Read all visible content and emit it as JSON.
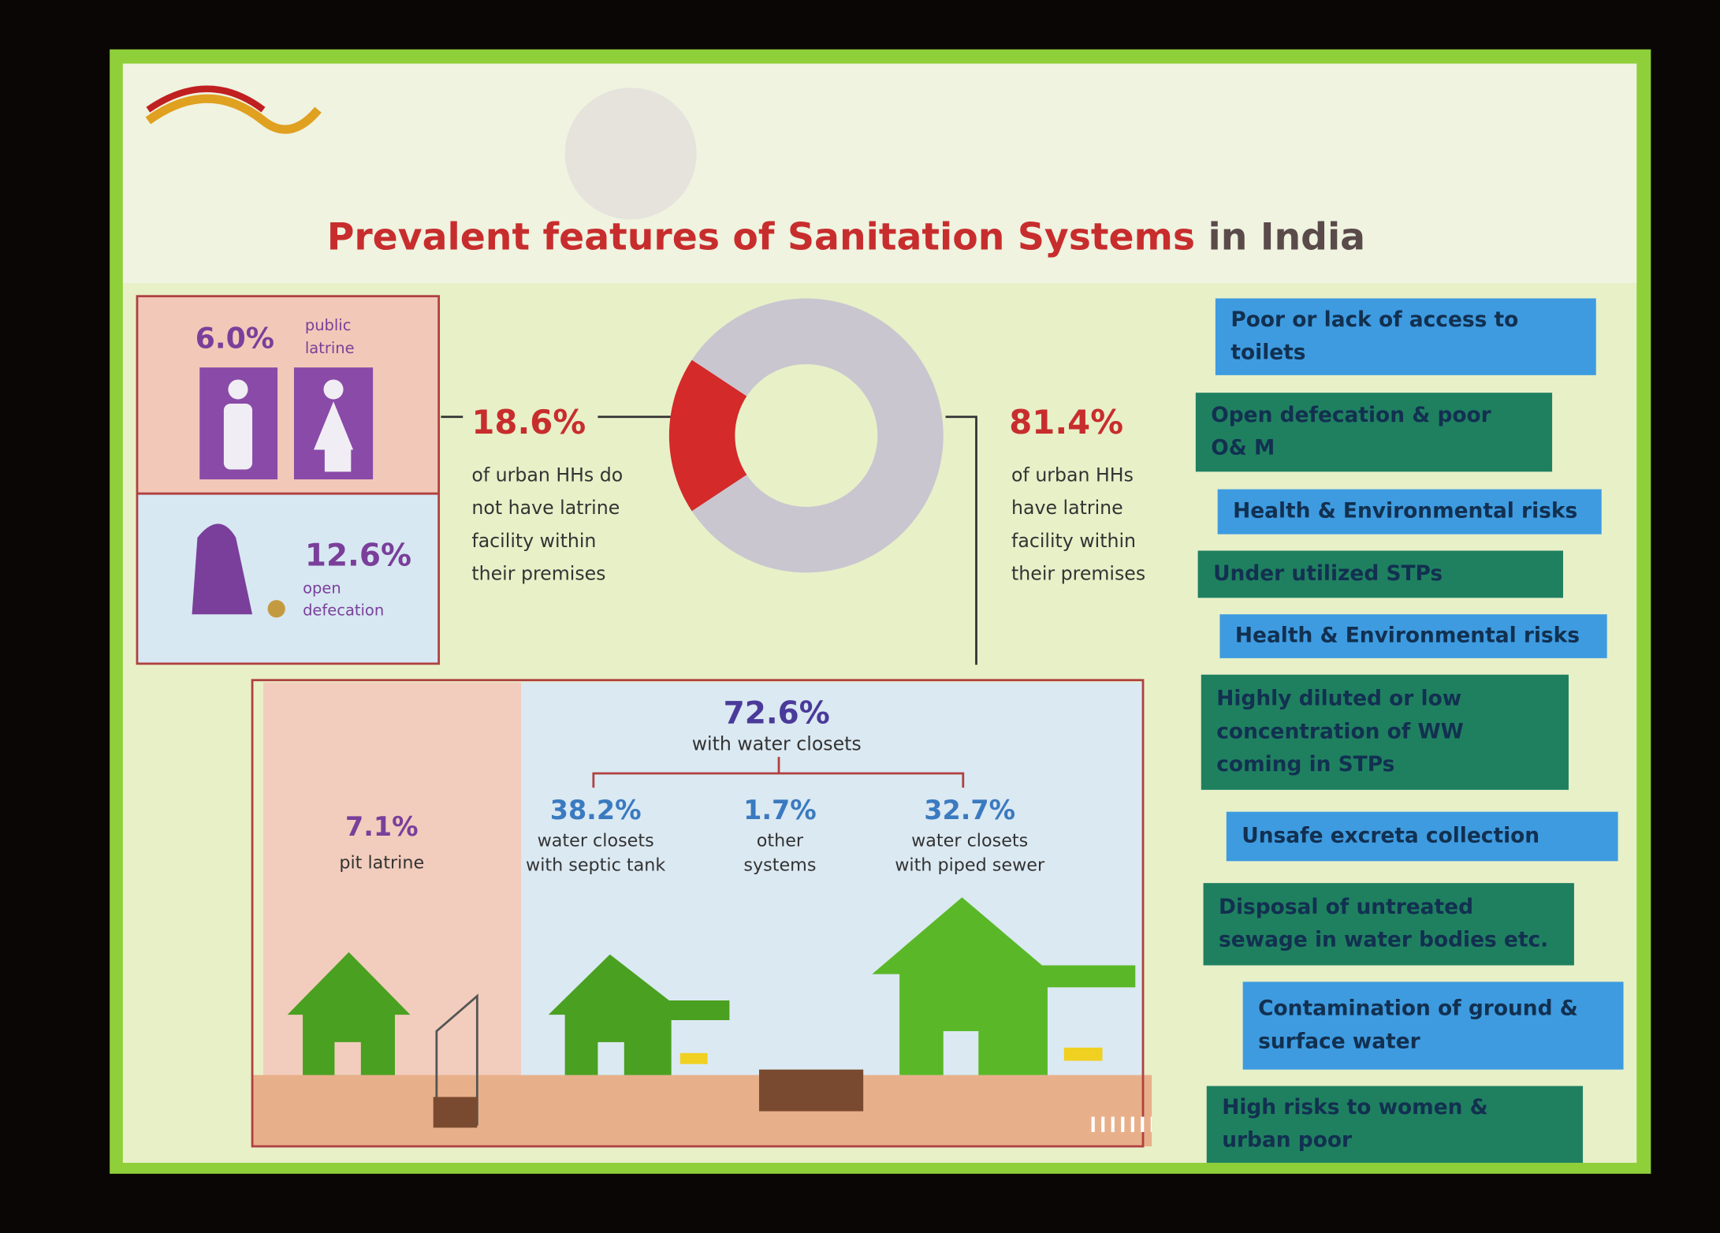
{
  "title": {
    "highlight": "Prevalent features of Sanitation Systems",
    "rest": "in India"
  },
  "public_latrine": {
    "value": "6.0%",
    "label": [
      "public",
      "latrine"
    ]
  },
  "open_defecation": {
    "value": "12.6%",
    "label": [
      "open",
      "defecation"
    ]
  },
  "donut": {
    "values": [
      18.6,
      81.4
    ],
    "value_labels": [
      "18.6%",
      "81.4%"
    ],
    "colors": [
      "#d42a2a",
      "#c9c6d0"
    ],
    "descriptions": [
      [
        "of urban HHs do",
        "not have latrine",
        "facility within",
        "their premises"
      ],
      [
        "of urban HHs",
        "have latrine",
        "facility within",
        "their premises"
      ]
    ]
  },
  "water_closets": {
    "value": "72.6%",
    "label": "with water closets"
  },
  "breakdown": [
    {
      "value": "7.1%",
      "label": [
        "pit latrine"
      ]
    },
    {
      "value": "38.2%",
      "label": [
        "water closets",
        "with septic tank"
      ]
    },
    {
      "value": "1.7%",
      "label": [
        "other",
        "systems"
      ]
    },
    {
      "value": "32.7%",
      "label": [
        "water closets",
        "with piped sewer"
      ]
    }
  ],
  "issues": [
    {
      "lines": [
        "Poor or lack of access to",
        "toilets"
      ],
      "color": "#3e9be0"
    },
    {
      "lines": [
        "Open defecation & poor",
        "O& M"
      ],
      "color": "#1f8060"
    },
    {
      "lines": [
        "Health & Environmental risks"
      ],
      "color": "#3e9be0"
    },
    {
      "lines": [
        "Under utilized STPs"
      ],
      "color": "#1f8060"
    },
    {
      "lines": [
        "Health & Environmental risks"
      ],
      "color": "#3e9be0"
    },
    {
      "lines": [
        "Highly diluted or low",
        "concentration of WW",
        "coming in STPs"
      ],
      "color": "#1f8060"
    },
    {
      "lines": [
        "Unsafe excreta collection"
      ],
      "color": "#3e9be0"
    },
    {
      "lines": [
        "Disposal of untreated",
        "sewage in water bodies etc."
      ],
      "color": "#1f8060"
    },
    {
      "lines": [
        "Contamination of ground &",
        "surface water"
      ],
      "color": "#3e9be0"
    },
    {
      "lines": [
        "High risks to women &",
        "urban poor"
      ],
      "color": "#1f8060"
    }
  ]
}
